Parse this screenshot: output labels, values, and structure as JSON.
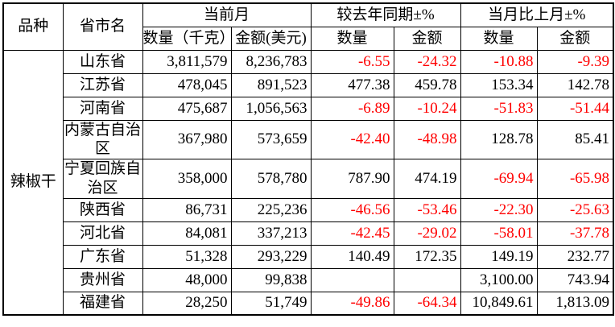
{
  "colors": {
    "negative_value": "#ff0000",
    "text": "#000000",
    "border": "#000000",
    "background": "#ffffff"
  },
  "table": {
    "header": {
      "col_variety": "品种",
      "col_province": "省市名",
      "group_current_month": "当前月",
      "group_yoy": "较去年同期±%",
      "group_mom": "当月比上月±%",
      "sub_qty_kg": "数量（千克）",
      "sub_amt_usd": "金额(美元)",
      "sub_qty": "数量",
      "sub_amt": "金额"
    },
    "variety": "辣椒干",
    "rows": [
      {
        "province": "山东省",
        "qty": "3,811,579",
        "amt": "8,236,783",
        "yoy_qty": "-6.55",
        "yoy_amt": "-24.32",
        "mom_qty": "-10.88",
        "mom_amt": "-9.39"
      },
      {
        "province": "江苏省",
        "qty": "478,045",
        "amt": "891,523",
        "yoy_qty": "477.38",
        "yoy_amt": "459.78",
        "mom_qty": "153.34",
        "mom_amt": "142.78"
      },
      {
        "province": "河南省",
        "qty": "475,687",
        "amt": "1,056,563",
        "yoy_qty": "-6.89",
        "yoy_amt": "-10.24",
        "mom_qty": "-51.83",
        "mom_amt": "-51.44"
      },
      {
        "province": "内蒙古自治区",
        "qty": "367,980",
        "amt": "573,659",
        "yoy_qty": "-42.40",
        "yoy_amt": "-48.98",
        "mom_qty": "128.78",
        "mom_amt": "85.41"
      },
      {
        "province": "宁夏回族自治区",
        "qty": "358,000",
        "amt": "578,780",
        "yoy_qty": "787.90",
        "yoy_amt": "474.19",
        "mom_qty": "-69.94",
        "mom_amt": "-65.98"
      },
      {
        "province": "陕西省",
        "qty": "86,731",
        "amt": "225,236",
        "yoy_qty": "-46.56",
        "yoy_amt": "-53.46",
        "mom_qty": "-22.30",
        "mom_amt": "-25.63"
      },
      {
        "province": "河北省",
        "qty": "84,081",
        "amt": "337,213",
        "yoy_qty": "-42.45",
        "yoy_amt": "-29.02",
        "mom_qty": "-58.01",
        "mom_amt": "-37.78"
      },
      {
        "province": "广东省",
        "qty": "51,328",
        "amt": "293,229",
        "yoy_qty": "140.49",
        "yoy_amt": "172.35",
        "mom_qty": "149.19",
        "mom_amt": "232.77"
      },
      {
        "province": "贵州省",
        "qty": "48,000",
        "amt": "99,838",
        "yoy_qty": "",
        "yoy_amt": "",
        "mom_qty": "3,100.00",
        "mom_amt": "743.94"
      },
      {
        "province": "福建省",
        "qty": "28,250",
        "amt": "51,749",
        "yoy_qty": "-49.86",
        "yoy_amt": "-64.34",
        "mom_qty": "10,849.61",
        "mom_amt": "1,813.09"
      }
    ]
  },
  "chart_data": {
    "type": "table",
    "title": "",
    "columns": [
      "品种",
      "省市名",
      "当前月 数量（千克）",
      "当前月 金额(美元)",
      "较去年同期±% 数量",
      "较去年同期±% 金额",
      "当月比上月±% 数量",
      "当月比上月±% 金额"
    ],
    "variety": "辣椒干",
    "rows": [
      [
        "辣椒干",
        "山东省",
        3811579,
        8236783,
        -6.55,
        -24.32,
        -10.88,
        -9.39
      ],
      [
        "辣椒干",
        "江苏省",
        478045,
        891523,
        477.38,
        459.78,
        153.34,
        142.78
      ],
      [
        "辣椒干",
        "河南省",
        475687,
        1056563,
        -6.89,
        -10.24,
        -51.83,
        -51.44
      ],
      [
        "辣椒干",
        "内蒙古自治区",
        367980,
        573659,
        -42.4,
        -48.98,
        128.78,
        85.41
      ],
      [
        "辣椒干",
        "宁夏回族自治区",
        358000,
        578780,
        787.9,
        474.19,
        -69.94,
        -65.98
      ],
      [
        "辣椒干",
        "陕西省",
        86731,
        225236,
        -46.56,
        -53.46,
        -22.3,
        -25.63
      ],
      [
        "辣椒干",
        "河北省",
        84081,
        337213,
        -42.45,
        -29.02,
        -58.01,
        -37.78
      ],
      [
        "辣椒干",
        "广东省",
        51328,
        293229,
        140.49,
        172.35,
        149.19,
        232.77
      ],
      [
        "辣椒干",
        "贵州省",
        48000,
        99838,
        null,
        null,
        3100.0,
        743.94
      ],
      [
        "辣椒干",
        "福建省",
        28250,
        51749,
        -49.86,
        -64.34,
        10849.61,
        1813.09
      ]
    ],
    "notes": "negative values shown in red"
  }
}
